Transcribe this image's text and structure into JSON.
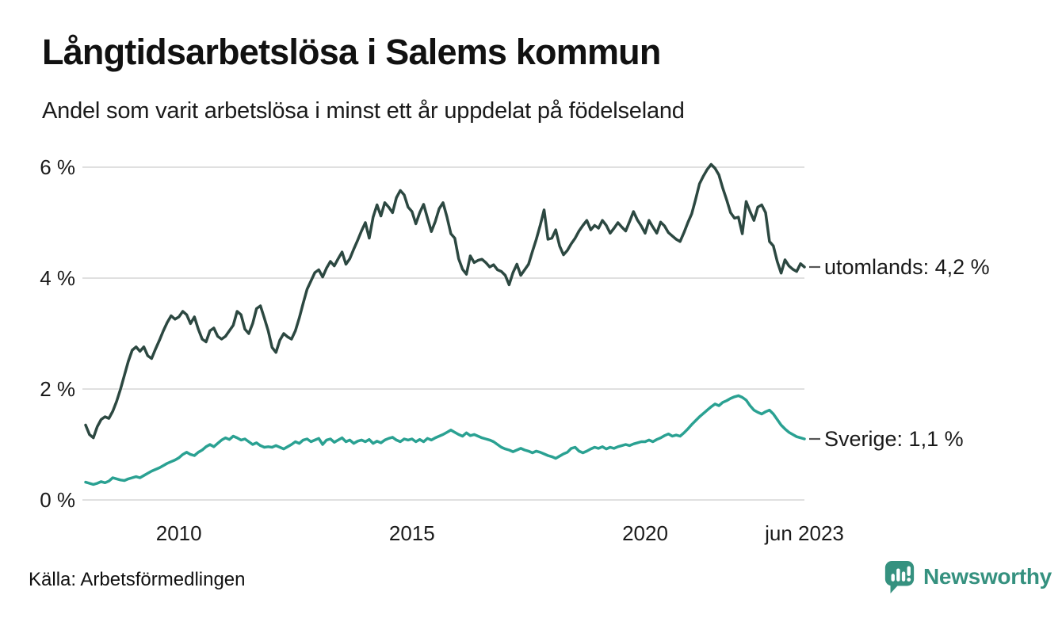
{
  "header": {
    "title": "Långtidsarbetslösa i Salems kommun",
    "subtitle": "Andel som varit arbetslösa i minst ett år uppdelat på födelseland"
  },
  "footer": {
    "source": "Källa: Arbetsförmedlingen",
    "brand": "Newsworthy"
  },
  "colors": {
    "utomlands": "#2c4841",
    "sverige": "#2aa192",
    "grid": "#e0e0e0",
    "text": "#1a1a1a",
    "brand": "#35917f",
    "tick_dash": "#555555"
  },
  "chart_data": {
    "type": "line",
    "title": "Långtidsarbetslösa i Salems kommun",
    "subtitle": "Andel som varit arbetslösa i minst ett år uppdelat på födelseland",
    "xlabel": "",
    "ylabel": "",
    "x_unit": "monthly, decimal years",
    "x_start": 2008.0,
    "x_step": 0.0833333,
    "x_end_label": "jun 2023",
    "ylim": [
      0,
      6
    ],
    "grid": true,
    "legend_position": "right-end-labels",
    "y_ticks": [
      {
        "value": 0,
        "label": "0 %"
      },
      {
        "value": 2,
        "label": "2 %"
      },
      {
        "value": 4,
        "label": "4 %"
      },
      {
        "value": 6,
        "label": "6 %"
      }
    ],
    "x_ticks": [
      {
        "t": 2010.0,
        "label": "2010"
      },
      {
        "t": 2015.0,
        "label": "2015"
      },
      {
        "t": 2020.0,
        "label": "2020"
      },
      {
        "t": 2023.4167,
        "label": "jun 2023"
      }
    ],
    "series": [
      {
        "name": "utomlands",
        "end_label": "utomlands: 4,2 %",
        "end_value": 4.2,
        "color_key": "utomlands",
        "values": [
          1.35,
          1.18,
          1.12,
          1.32,
          1.45,
          1.5,
          1.47,
          1.6,
          1.78,
          2.0,
          2.25,
          2.5,
          2.7,
          2.76,
          2.68,
          2.76,
          2.6,
          2.55,
          2.72,
          2.88,
          3.05,
          3.2,
          3.32,
          3.26,
          3.3,
          3.4,
          3.34,
          3.18,
          3.3,
          3.08,
          2.9,
          2.85,
          3.05,
          3.1,
          2.95,
          2.9,
          2.95,
          3.05,
          3.15,
          3.4,
          3.34,
          3.08,
          3.0,
          3.18,
          3.45,
          3.5,
          3.28,
          3.05,
          2.75,
          2.66,
          2.88,
          3.0,
          2.94,
          2.9,
          3.05,
          3.28,
          3.55,
          3.8,
          3.95,
          4.1,
          4.15,
          4.02,
          4.18,
          4.3,
          4.22,
          4.35,
          4.47,
          4.25,
          4.35,
          4.52,
          4.68,
          4.85,
          5.0,
          4.72,
          5.1,
          5.32,
          5.12,
          5.36,
          5.28,
          5.18,
          5.45,
          5.58,
          5.5,
          5.28,
          5.2,
          4.98,
          5.18,
          5.33,
          5.08,
          4.84,
          5.02,
          5.25,
          5.36,
          5.1,
          4.8,
          4.72,
          4.35,
          4.16,
          4.07,
          4.4,
          4.28,
          4.32,
          4.34,
          4.28,
          4.2,
          4.24,
          4.15,
          4.12,
          4.05,
          3.88,
          4.1,
          4.25,
          4.05,
          4.15,
          4.25,
          4.48,
          4.7,
          4.95,
          5.23,
          4.7,
          4.72,
          4.87,
          4.58,
          4.42,
          4.5,
          4.62,
          4.72,
          4.85,
          4.95,
          5.04,
          4.87,
          4.95,
          4.9,
          5.04,
          4.95,
          4.81,
          4.9,
          5.0,
          4.92,
          4.85,
          5.02,
          5.2,
          5.05,
          4.94,
          4.81,
          5.04,
          4.92,
          4.81,
          5.01,
          4.94,
          4.82,
          4.76,
          4.7,
          4.66,
          4.82,
          5.0,
          5.16,
          5.42,
          5.7,
          5.84,
          5.96,
          6.05,
          5.98,
          5.86,
          5.62,
          5.41,
          5.18,
          5.08,
          5.1,
          4.8,
          5.38,
          5.2,
          5.04,
          5.28,
          5.32,
          5.18,
          4.66,
          4.58,
          4.3,
          4.09,
          4.33,
          4.22,
          4.16,
          4.12,
          4.26,
          4.2
        ]
      },
      {
        "name": "Sverige",
        "end_label": "Sverige: 1,1 %",
        "end_value": 1.1,
        "color_key": "sverige",
        "values": [
          0.32,
          0.3,
          0.28,
          0.3,
          0.33,
          0.31,
          0.34,
          0.4,
          0.38,
          0.36,
          0.35,
          0.38,
          0.4,
          0.42,
          0.4,
          0.44,
          0.48,
          0.52,
          0.55,
          0.58,
          0.62,
          0.66,
          0.69,
          0.72,
          0.76,
          0.82,
          0.86,
          0.82,
          0.8,
          0.86,
          0.9,
          0.96,
          1.0,
          0.96,
          1.02,
          1.08,
          1.12,
          1.09,
          1.15,
          1.12,
          1.08,
          1.1,
          1.05,
          1.0,
          1.03,
          0.98,
          0.95,
          0.96,
          0.95,
          0.98,
          0.95,
          0.92,
          0.96,
          1.0,
          1.05,
          1.02,
          1.08,
          1.1,
          1.05,
          1.08,
          1.11,
          1.0,
          1.08,
          1.1,
          1.04,
          1.08,
          1.12,
          1.05,
          1.08,
          1.02,
          1.06,
          1.08,
          1.05,
          1.09,
          1.02,
          1.06,
          1.03,
          1.08,
          1.11,
          1.13,
          1.08,
          1.05,
          1.1,
          1.08,
          1.1,
          1.05,
          1.09,
          1.05,
          1.11,
          1.08,
          1.12,
          1.15,
          1.18,
          1.22,
          1.26,
          1.22,
          1.18,
          1.15,
          1.21,
          1.16,
          1.18,
          1.15,
          1.12,
          1.1,
          1.08,
          1.05,
          1.0,
          0.95,
          0.92,
          0.9,
          0.87,
          0.9,
          0.93,
          0.9,
          0.88,
          0.85,
          0.88,
          0.86,
          0.83,
          0.8,
          0.78,
          0.75,
          0.79,
          0.83,
          0.86,
          0.93,
          0.95,
          0.88,
          0.85,
          0.88,
          0.92,
          0.95,
          0.93,
          0.96,
          0.92,
          0.95,
          0.93,
          0.96,
          0.98,
          1.0,
          0.98,
          1.01,
          1.03,
          1.05,
          1.05,
          1.08,
          1.05,
          1.09,
          1.12,
          1.16,
          1.19,
          1.15,
          1.17,
          1.15,
          1.21,
          1.28,
          1.36,
          1.43,
          1.5,
          1.56,
          1.62,
          1.68,
          1.73,
          1.7,
          1.76,
          1.79,
          1.83,
          1.86,
          1.88,
          1.85,
          1.8,
          1.7,
          1.62,
          1.58,
          1.55,
          1.59,
          1.62,
          1.55,
          1.45,
          1.35,
          1.28,
          1.22,
          1.18,
          1.14,
          1.12,
          1.1
        ]
      }
    ]
  }
}
